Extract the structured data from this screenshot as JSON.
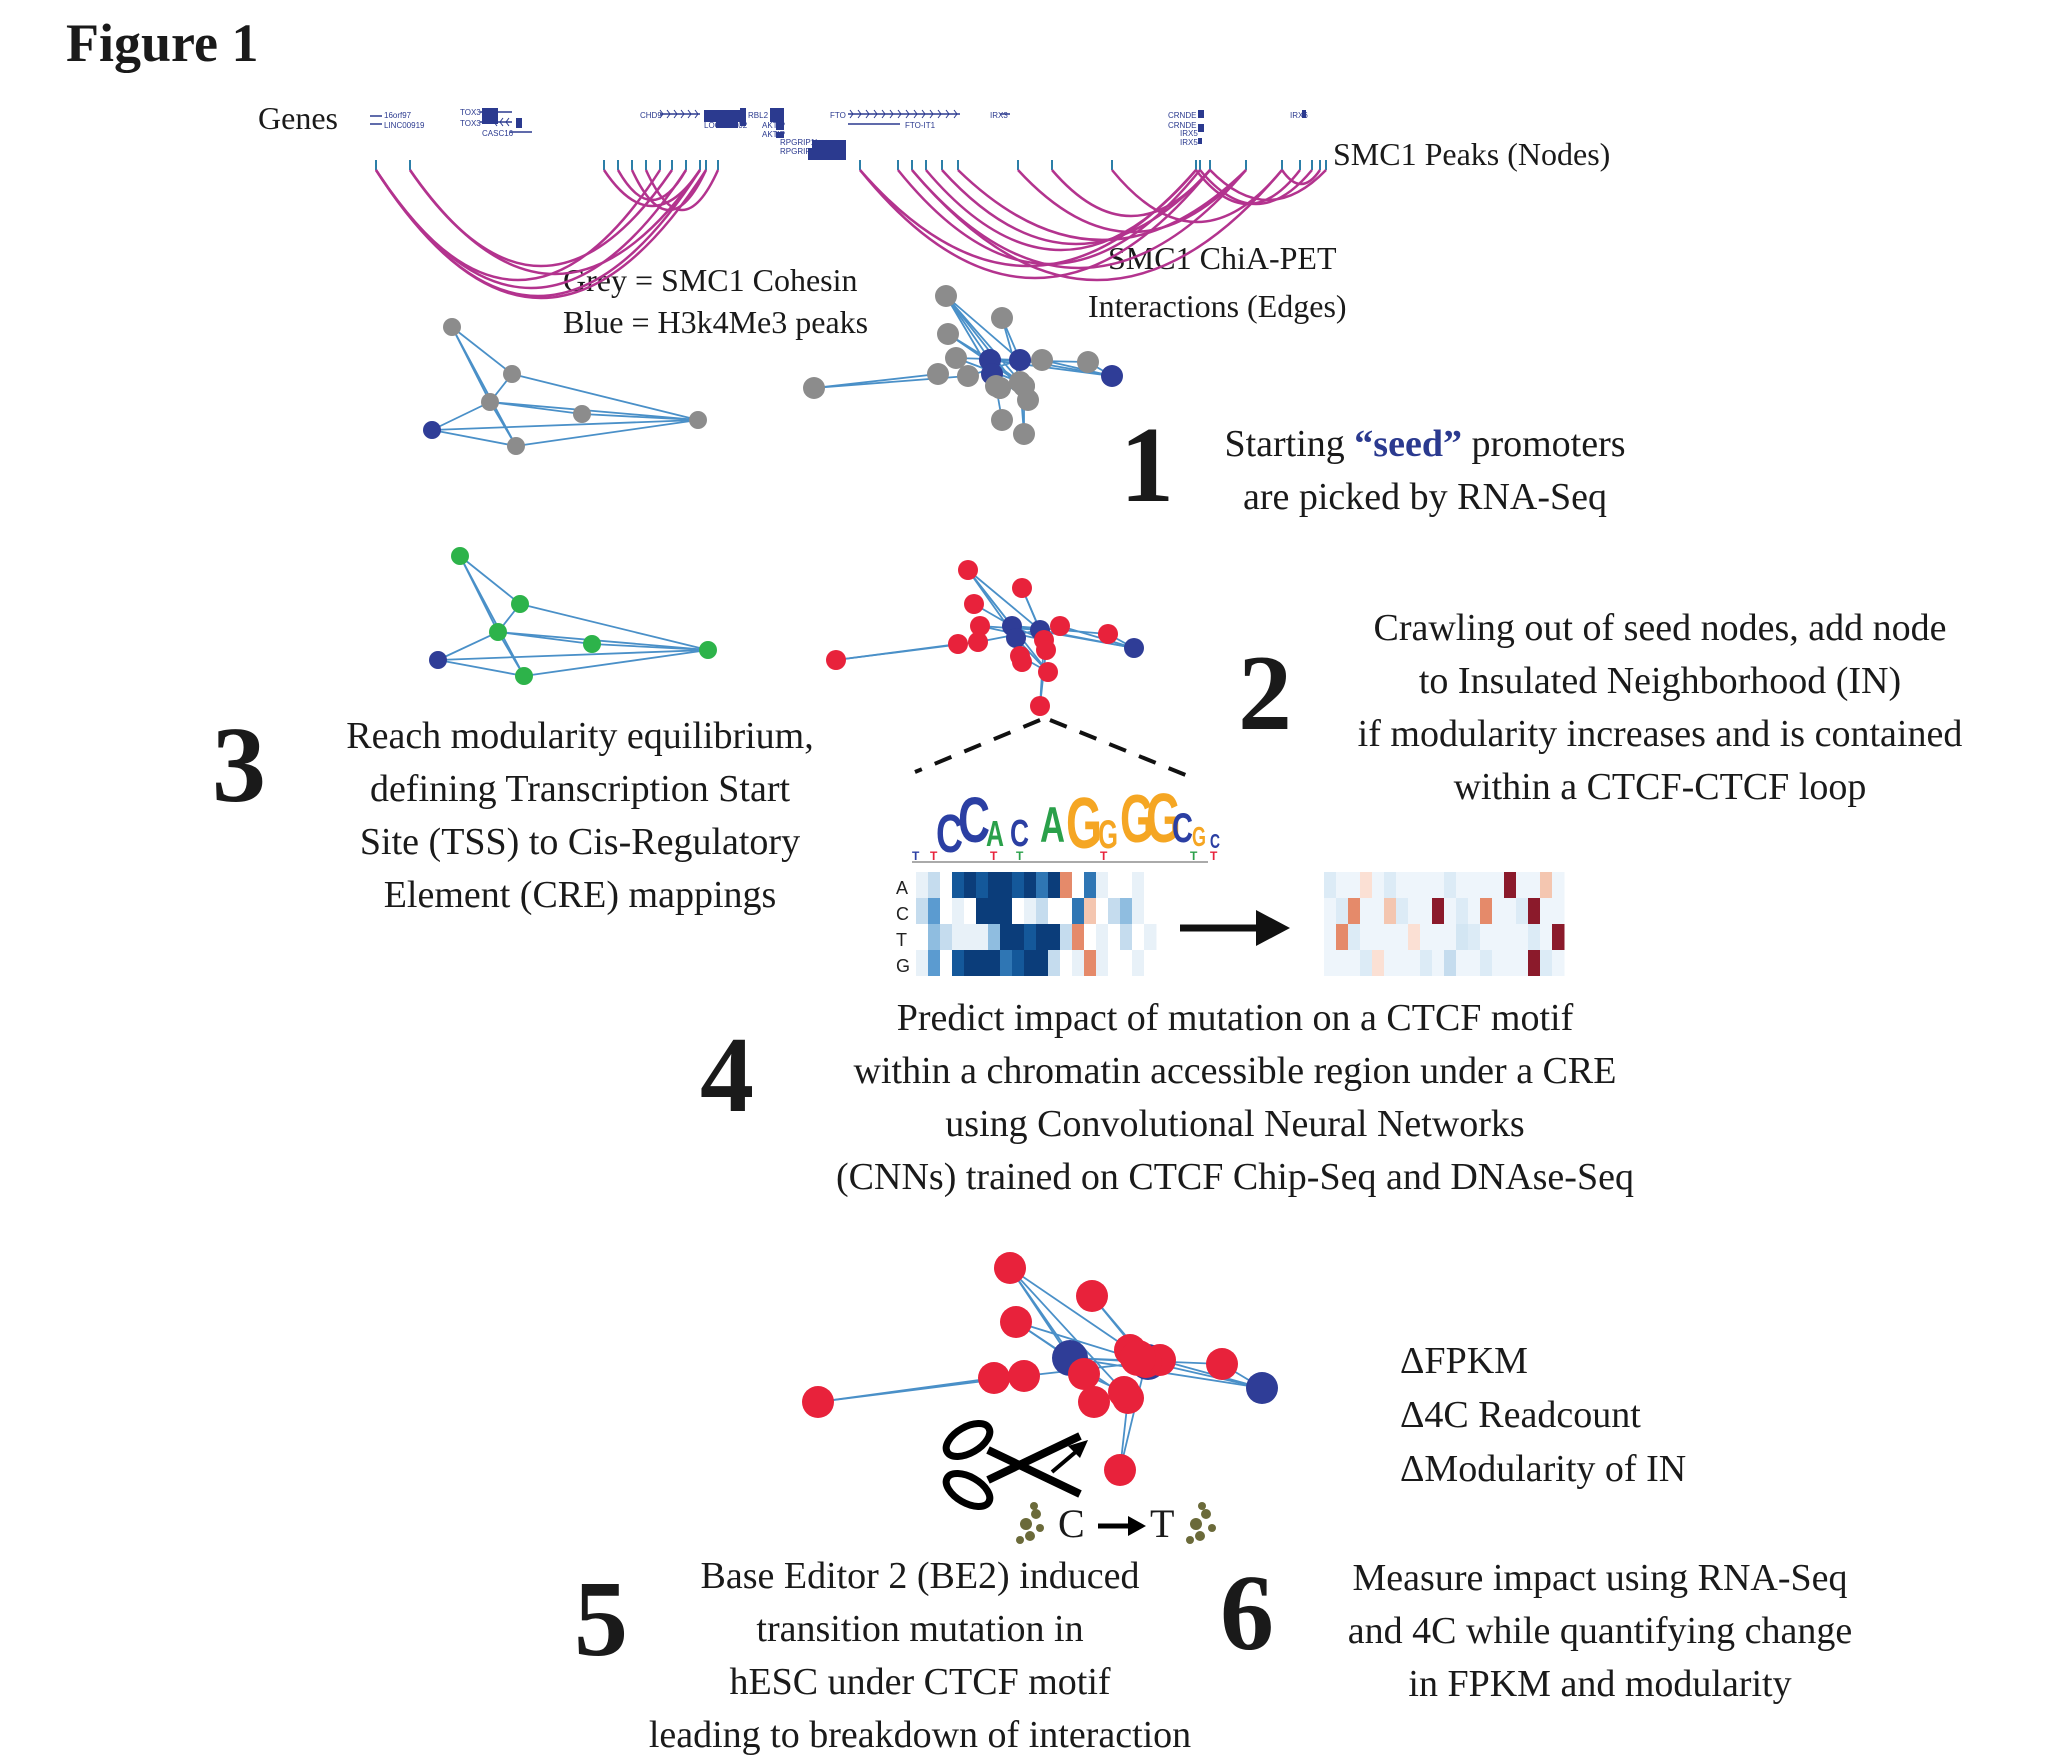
{
  "figure_title": "Figure 1",
  "track": {
    "genes_label": "Genes",
    "peaks_label": "SMC1 Peaks (Nodes)",
    "interactions_label_line1": "SMC1 ChiA-PET",
    "interactions_label_line2": "Interactions (Edges)",
    "gene_names": [
      "16orf97",
      "LINC00919",
      "TOX3",
      "TOX3",
      "CASC16",
      "CHD9",
      "LOC643802",
      "RBL2",
      "AKTIP",
      "AKTIP",
      "RPGRIP1L",
      "RPGRIP1L",
      "FTO",
      "FTO-IT1",
      "IRX3",
      "CRNDE",
      "CRNDE",
      "IRX5",
      "IRX5",
      "IRX6"
    ]
  },
  "legend": {
    "grey": "Grey = SMC1 Cohesin",
    "blue": "Blue = H3k4Me3 peaks"
  },
  "colors": {
    "grey_node": "#8c8c8c",
    "blue_node": "#2f3d97",
    "green_node": "#2db34a",
    "red_node": "#e8223b",
    "edge": "#4a90c8",
    "arc": "#b3338e",
    "gene": "#2b3a8f"
  },
  "steps": {
    "s1": {
      "num": "1",
      "pre": "Starting ",
      "seed": "“seed”",
      "post": " promoters",
      "line2": "are picked by RNA-Seq"
    },
    "s2": {
      "num": "2",
      "line1": "Crawling out of seed nodes, add node",
      "line2": "to Insulated Neighborhood (IN)",
      "line3": "if modularity increases and is contained",
      "line4": "within a CTCF-CTCF loop"
    },
    "s3": {
      "num": "3",
      "line1": "Reach modularity equilibrium,",
      "line2": "defining Transcription Start",
      "line3": "Site (TSS) to Cis-Regulatory",
      "line4": "Element (CRE) mappings"
    },
    "s4": {
      "num": "4",
      "line1": "Predict impact of mutation on a CTCF motif",
      "line2": "within a chromatin accessible region under a CRE",
      "line3": "using Convolutional Neural Networks",
      "line4": "(CNNs) trained on CTCF Chip-Seq and DNAse-Seq"
    },
    "s5": {
      "num": "5",
      "line1": "Base Editor 2 (BE2) induced",
      "line2": "transition mutation in",
      "line3": "hESC under CTCF motif",
      "line4": "leading to breakdown of interaction"
    },
    "s6": {
      "num": "6",
      "line1": "Measure impact using RNA-Seq",
      "line2": "and 4C while quantifying change",
      "line3": "in FPKM and modularity"
    }
  },
  "motif": {
    "logo_letters": [
      "C",
      "C",
      "A",
      "C",
      "A",
      "G",
      "G",
      "G",
      "G",
      "C",
      "G",
      "C"
    ],
    "heatmap_rows": [
      "A",
      "C",
      "T",
      "G"
    ]
  },
  "mutation": {
    "from": "C",
    "to": "T"
  },
  "metrics": [
    "ΔFPKM",
    "Δ4C Readcount",
    "ΔModularity of IN"
  ]
}
